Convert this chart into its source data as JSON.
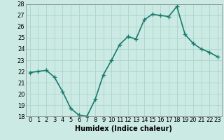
{
  "x": [
    0,
    1,
    2,
    3,
    4,
    5,
    6,
    7,
    8,
    9,
    10,
    11,
    12,
    13,
    14,
    15,
    16,
    17,
    18,
    19,
    20,
    21,
    22,
    23
  ],
  "y": [
    21.9,
    22.0,
    22.1,
    21.5,
    20.2,
    18.7,
    18.1,
    18.0,
    19.5,
    21.7,
    23.0,
    24.4,
    25.1,
    24.9,
    26.6,
    27.1,
    27.0,
    26.9,
    27.8,
    25.3,
    24.5,
    24.0,
    23.7,
    23.3
  ],
  "line_color": "#1a7a6e",
  "marker": "+",
  "marker_size": 4,
  "linewidth": 1.2,
  "xlabel": "Humidex (Indice chaleur)",
  "ylim": [
    18,
    28
  ],
  "yticks": [
    18,
    19,
    20,
    21,
    22,
    23,
    24,
    25,
    26,
    27,
    28
  ],
  "xlim": [
    -0.5,
    23.5
  ],
  "xtick_labels": [
    "0",
    "1",
    "2",
    "3",
    "4",
    "5",
    "6",
    "7",
    "8",
    "9",
    "10",
    "11",
    "12",
    "13",
    "14",
    "15",
    "16",
    "17",
    "18",
    "19",
    "20",
    "21",
    "22",
    "23"
  ],
  "bg_color": "#cceae4",
  "grid_color": "#aad4cc",
  "label_fontsize": 7,
  "tick_fontsize": 6
}
